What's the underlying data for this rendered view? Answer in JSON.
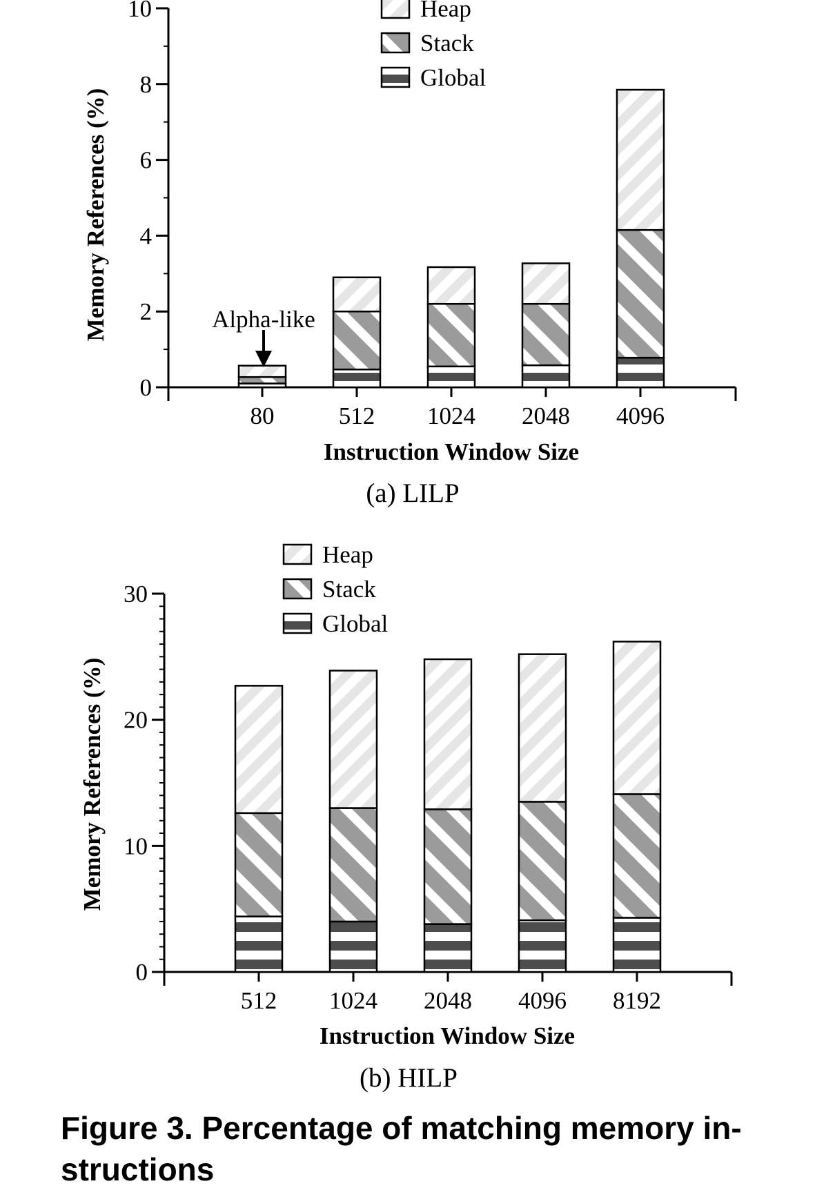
{
  "chart_data": [
    {
      "type": "bar",
      "stacked": true,
      "caption": "(a) LILP",
      "xlabel": "Instruction Window Size",
      "ylabel": "Memory References (%)",
      "categories": [
        "80",
        "512",
        "1024",
        "2048",
        "4096"
      ],
      "ylim": [
        0,
        10
      ],
      "yticks": [
        "0",
        "2",
        "4",
        "6",
        "8",
        "10"
      ],
      "series": [
        {
          "name": "Global",
          "values": [
            0.1,
            0.47,
            0.55,
            0.58,
            0.78
          ]
        },
        {
          "name": "Stack",
          "values": [
            0.17,
            1.53,
            1.65,
            1.62,
            3.37
          ]
        },
        {
          "name": "Heap",
          "values": [
            0.3,
            0.9,
            0.97,
            1.07,
            3.7
          ]
        }
      ],
      "legend_order": [
        "Heap",
        "Stack",
        "Global"
      ],
      "legend_position": "top-center",
      "annotation": {
        "text": "Alpha-like",
        "category": "80"
      }
    },
    {
      "type": "bar",
      "stacked": true,
      "caption": "(b) HILP",
      "xlabel": "Instruction Window Size",
      "ylabel": "Memory References (%)",
      "categories": [
        "512",
        "1024",
        "2048",
        "4096",
        "8192"
      ],
      "ylim": [
        0,
        30
      ],
      "yticks": [
        "0",
        "10",
        "20",
        "30"
      ],
      "series": [
        {
          "name": "Global",
          "values": [
            4.4,
            4.0,
            3.8,
            4.1,
            4.3
          ]
        },
        {
          "name": "Stack",
          "values": [
            8.2,
            9.0,
            9.1,
            9.4,
            9.8
          ]
        },
        {
          "name": "Heap",
          "values": [
            10.1,
            10.9,
            11.9,
            11.7,
            12.1
          ]
        }
      ],
      "legend_order": [
        "Heap",
        "Stack",
        "Global"
      ],
      "legend_position": "top-left"
    }
  ],
  "figure_caption": "Figure 3. Percentage of matching memory in- structions",
  "colors": {
    "heap_stripe": "#e6e6e6",
    "stack_stripe": "#9b9b9b",
    "global_band": "#4d4d4d",
    "outline": "#000000"
  }
}
